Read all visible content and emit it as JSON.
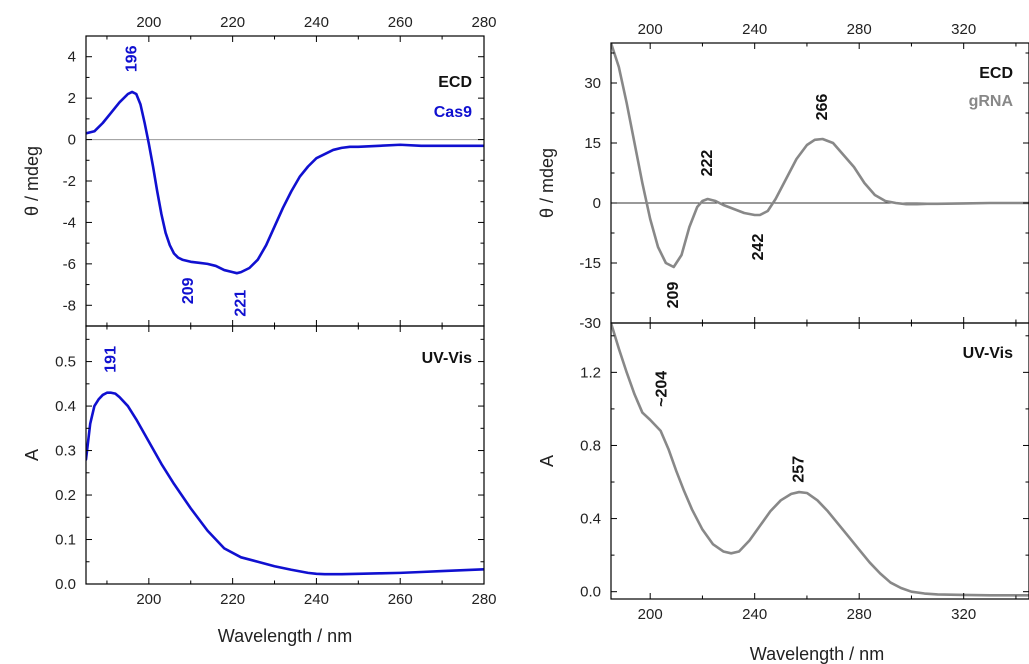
{
  "colors": {
    "cas9": "#1010d0",
    "grna": "#888888",
    "text": "#111111",
    "axis": "#000000",
    "zero_line": "#9a9a9a"
  },
  "chart_data": [
    {
      "id": "cas9-ecd",
      "type": "line",
      "xlim": [
        185,
        280
      ],
      "ylim": [
        -9,
        5
      ],
      "ylabel": "θ / mdeg",
      "xticks": [
        200,
        220,
        240,
        260,
        280
      ],
      "yticks": [
        -8,
        -6,
        -4,
        -2,
        0,
        2,
        4
      ],
      "ytick_labels": [
        "-8",
        "-6",
        "-4",
        "-2",
        "0",
        "2",
        "4"
      ],
      "top_tick_labels": true,
      "bottom_tick_labels": false,
      "zero_line": true,
      "legend": [
        "ECD",
        "Cas9"
      ],
      "series": [
        {
          "name": "Cas9",
          "color_key": "cas9",
          "x": [
            185,
            187,
            189,
            191,
            193,
            195,
            196,
            197,
            198,
            199,
            200,
            201,
            202,
            203,
            204,
            205,
            206,
            207,
            208,
            209,
            210,
            212,
            214,
            216,
            218,
            220,
            221,
            222,
            224,
            226,
            228,
            230,
            232,
            234,
            236,
            238,
            240,
            242,
            244,
            246,
            248,
            250,
            255,
            260,
            265,
            270,
            275,
            280
          ],
          "y": [
            0.3,
            0.4,
            0.8,
            1.3,
            1.8,
            2.2,
            2.3,
            2.2,
            1.7,
            0.8,
            -0.2,
            -1.3,
            -2.5,
            -3.6,
            -4.5,
            -5.1,
            -5.5,
            -5.7,
            -5.8,
            -5.85,
            -5.9,
            -5.95,
            -6.0,
            -6.1,
            -6.3,
            -6.4,
            -6.45,
            -6.4,
            -6.2,
            -5.8,
            -5.1,
            -4.2,
            -3.3,
            -2.5,
            -1.8,
            -1.3,
            -0.9,
            -0.7,
            -0.5,
            -0.4,
            -0.35,
            -0.35,
            -0.3,
            -0.25,
            -0.3,
            -0.3,
            -0.3,
            -0.3
          ]
        }
      ],
      "annotations": [
        {
          "text": "196",
          "x": 196,
          "y": 3.9,
          "rotate": -90,
          "color_key": "cas9"
        },
        {
          "text": "209",
          "x": 209.5,
          "y": -7.3,
          "rotate": -90,
          "color_key": "cas9"
        },
        {
          "text": "221",
          "x": 222,
          "y": -7.9,
          "rotate": -90,
          "color_key": "cas9"
        }
      ]
    },
    {
      "id": "cas9-uv",
      "type": "line",
      "xlim": [
        185,
        280
      ],
      "ylim": [
        0,
        0.58
      ],
      "ylabel": "A",
      "xlabel": "Wavelength / nm",
      "xticks": [
        200,
        220,
        240,
        260,
        280
      ],
      "yticks": [
        0.0,
        0.1,
        0.2,
        0.3,
        0.4,
        0.5
      ],
      "ytick_labels": [
        "0.0",
        "0.1",
        "0.2",
        "0.3",
        "0.4",
        "0.5"
      ],
      "top_tick_labels": false,
      "bottom_tick_labels": true,
      "zero_line": false,
      "legend": [
        "UV-Vis"
      ],
      "series": [
        {
          "name": "Cas9",
          "color_key": "cas9",
          "x": [
            185,
            186,
            187,
            188,
            189,
            190,
            191,
            192,
            193,
            195,
            197,
            200,
            203,
            206,
            210,
            214,
            218,
            222,
            226,
            230,
            234,
            238,
            240,
            242,
            246,
            250,
            255,
            260,
            265,
            270,
            275,
            280
          ],
          "y": [
            0.28,
            0.36,
            0.4,
            0.415,
            0.425,
            0.43,
            0.43,
            0.428,
            0.42,
            0.4,
            0.37,
            0.32,
            0.27,
            0.225,
            0.17,
            0.12,
            0.08,
            0.06,
            0.05,
            0.04,
            0.032,
            0.025,
            0.023,
            0.022,
            0.022,
            0.023,
            0.024,
            0.025,
            0.027,
            0.029,
            0.031,
            0.033
          ]
        }
      ],
      "annotations": [
        {
          "text": "191",
          "x": 191,
          "y": 0.505,
          "rotate": -90,
          "color_key": "cas9"
        }
      ]
    },
    {
      "id": "grna-ecd",
      "type": "line",
      "xlim": [
        185,
        345
      ],
      "ylim": [
        -30,
        40
      ],
      "ylabel": "θ / mdeg",
      "xticks": [
        200,
        240,
        280,
        320
      ],
      "yticks": [
        -30,
        -15,
        0,
        15,
        30
      ],
      "ytick_labels": [
        "-30",
        "-15",
        "0",
        "15",
        "30"
      ],
      "top_tick_labels": true,
      "bottom_tick_labels": false,
      "zero_line": true,
      "legend": [
        "ECD",
        "gRNA"
      ],
      "series": [
        {
          "name": "gRNA",
          "color_key": "grna",
          "x": [
            185,
            188,
            191,
            194,
            197,
            200,
            203,
            206,
            209,
            212,
            215,
            218,
            220,
            222,
            225,
            228,
            232,
            236,
            240,
            242,
            245,
            248,
            252,
            256,
            260,
            263,
            266,
            270,
            274,
            278,
            282,
            286,
            290,
            294,
            298,
            302,
            306,
            310,
            320,
            330,
            340,
            345
          ],
          "y": [
            40,
            34,
            25,
            15,
            5,
            -4,
            -11,
            -15,
            -16,
            -13,
            -6,
            -1,
            0.5,
            1,
            0.5,
            -0.5,
            -1.5,
            -2.5,
            -3,
            -3,
            -2,
            1,
            6,
            11,
            14.5,
            15.8,
            16,
            15,
            12,
            9,
            5,
            2,
            0.5,
            0,
            -0.3,
            -0.3,
            -0.2,
            -0.2,
            -0.1,
            0,
            0,
            0
          ]
        }
      ],
      "annotations": [
        {
          "text": "222",
          "x": 222,
          "y": 10,
          "rotate": -90,
          "color_key": "text"
        },
        {
          "text": "266",
          "x": 266,
          "y": 24,
          "rotate": -90,
          "color_key": "text"
        },
        {
          "text": "242",
          "x": 241.5,
          "y": -11,
          "rotate": -90,
          "color_key": "text"
        },
        {
          "text": "209",
          "x": 209,
          "y": -23,
          "rotate": -90,
          "color_key": "text"
        }
      ]
    },
    {
      "id": "grna-uv",
      "type": "line",
      "xlim": [
        185,
        345
      ],
      "ylim": [
        -0.04,
        1.47
      ],
      "ylabel": "A",
      "xlabel": "Wavelength / nm",
      "xticks": [
        200,
        240,
        280,
        320
      ],
      "yticks": [
        0.0,
        0.4,
        0.8,
        1.2
      ],
      "ytick_labels": [
        "0.0",
        "0.4",
        "0.8",
        "1.2"
      ],
      "top_tick_labels": false,
      "bottom_tick_labels": true,
      "zero_line": false,
      "legend": [
        "UV-Vis"
      ],
      "series": [
        {
          "name": "gRNA",
          "color_key": "grna",
          "x": [
            185,
            188,
            191,
            194,
            197,
            200,
            204,
            207,
            210,
            213,
            216,
            220,
            224,
            228,
            231,
            234,
            238,
            242,
            246,
            250,
            254,
            257,
            260,
            264,
            268,
            272,
            276,
            280,
            284,
            288,
            292,
            296,
            300,
            305,
            310,
            320,
            330,
            345
          ],
          "y": [
            1.47,
            1.33,
            1.2,
            1.08,
            0.98,
            0.94,
            0.88,
            0.78,
            0.66,
            0.55,
            0.45,
            0.34,
            0.26,
            0.22,
            0.21,
            0.22,
            0.28,
            0.36,
            0.44,
            0.5,
            0.535,
            0.545,
            0.54,
            0.5,
            0.44,
            0.37,
            0.3,
            0.23,
            0.16,
            0.1,
            0.05,
            0.02,
            0.0,
            -0.01,
            -0.015,
            -0.018,
            -0.02,
            -0.02
          ]
        }
      ],
      "annotations": [
        {
          "text": "~204",
          "x": 204.5,
          "y": 1.11,
          "rotate": -90,
          "color_key": "text"
        },
        {
          "text": "257",
          "x": 257,
          "y": 0.67,
          "rotate": -90,
          "color_key": "text"
        }
      ]
    }
  ]
}
